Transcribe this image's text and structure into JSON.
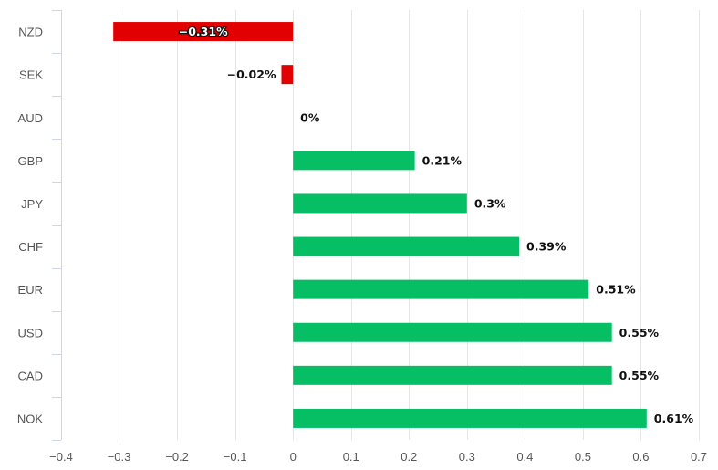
{
  "chart_data": {
    "type": "bar",
    "orientation": "horizontal",
    "title": "",
    "xlabel": "",
    "ylabel": "",
    "categories": [
      "NZD",
      "SEK",
      "AUD",
      "GBP",
      "JPY",
      "CHF",
      "EUR",
      "USD",
      "CAD",
      "NOK"
    ],
    "values": [
      -0.31,
      -0.02,
      0,
      0.21,
      0.3,
      0.39,
      0.51,
      0.55,
      0.55,
      0.61
    ],
    "data_labels": [
      "−0.31%",
      "−0.02%",
      "0%",
      "0.21%",
      "0.3%",
      "0.39%",
      "0.51%",
      "0.55%",
      "0.55%",
      "0.61%"
    ],
    "xlim": [
      -0.4,
      0.7
    ],
    "xticks": [
      -0.4,
      -0.3,
      -0.2,
      -0.1,
      0,
      0.1,
      0.2,
      0.3,
      0.4,
      0.5,
      0.6,
      0.7
    ],
    "xtick_labels": [
      "−0.4",
      "−0.3",
      "−0.2",
      "−0.1",
      "0",
      "0.1",
      "0.2",
      "0.3",
      "0.4",
      "0.5",
      "0.6",
      "0.7"
    ],
    "grid": true,
    "legend": "none",
    "colors": {
      "positive": "#06bf64",
      "negative": "#e30000",
      "grid": "#e6e6e6",
      "axis": "#ccd6eb"
    }
  }
}
